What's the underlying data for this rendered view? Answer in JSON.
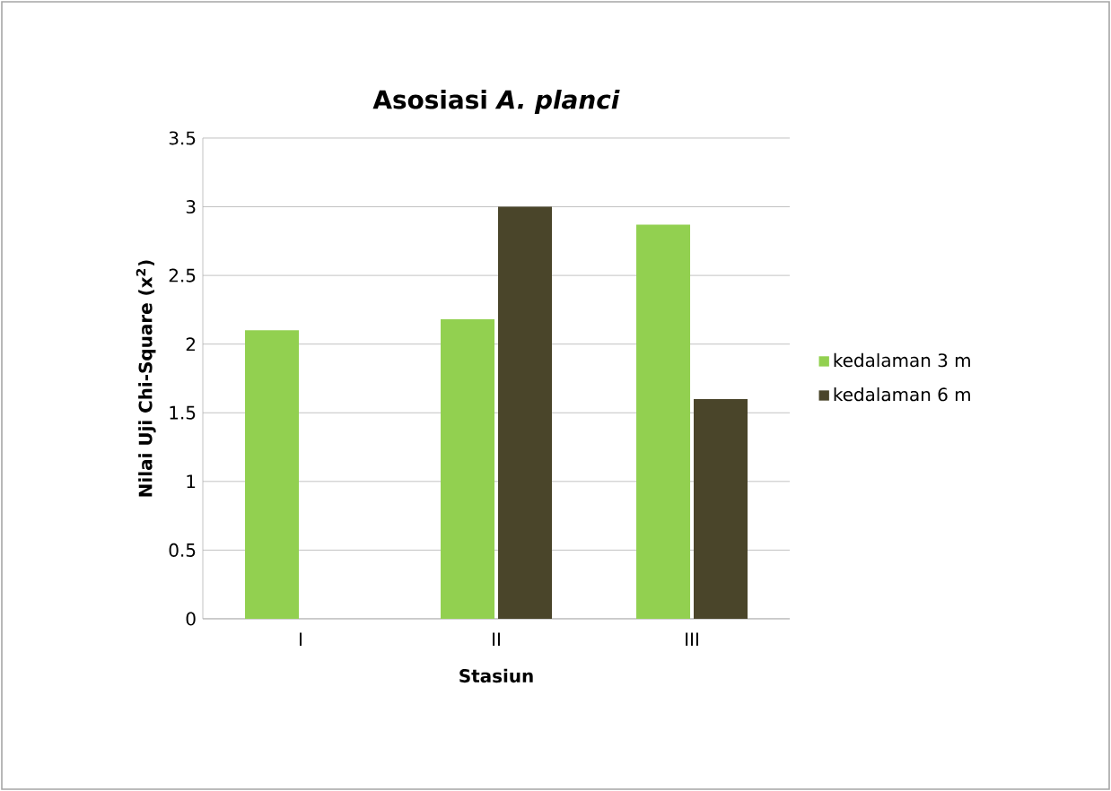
{
  "chart_data": {
    "type": "bar",
    "title": "Asosiasi *A. planci*",
    "xlabel": "Stasiun",
    "ylabel": "Nilai Uji Chi-Square (x$^{2}$)",
    "categories": [
      "I",
      "II",
      "III"
    ],
    "series": [
      {
        "name": "kedalaman 3 m",
        "color": "#92d050",
        "values": [
          2.1,
          2.18,
          2.87
        ]
      },
      {
        "name": "kedalaman 6 m",
        "color": "#4a452a",
        "values": [
          null,
          3.0,
          1.6
        ]
      }
    ],
    "ylim": [
      0,
      3.5
    ],
    "yticks": [
      0,
      0.5,
      1,
      1.5,
      2,
      2.5,
      3,
      3.5
    ],
    "grid": "y",
    "legend": "right"
  }
}
